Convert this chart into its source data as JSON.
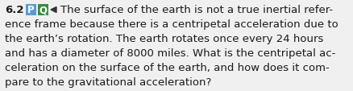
{
  "section_number": "6.2",
  "badge_P_text": "P",
  "badge_Q_text": "Q",
  "badge_P_color": "#5b9bd5",
  "badge_Q_color": "#3d8c40",
  "triangle_color": "#333333",
  "lines": [
    "The surface of the earth is not a true inertial refer-",
    "ence frame because there is a centripetal acceleration due to",
    "the earth’s rotation. The earth rotates once every 24 hours",
    "and has a diameter of 8000 miles. What is the centripetal ac-",
    "celeration on the surface of the earth, and how does it com-",
    "pare to the gravitational acceleration?"
  ],
  "background_color": "#f0f0f0",
  "text_color": "#1a1a1a",
  "body_fontsize": 9.5,
  "figwidth": 4.38,
  "figheight": 1.14,
  "dpi": 100
}
